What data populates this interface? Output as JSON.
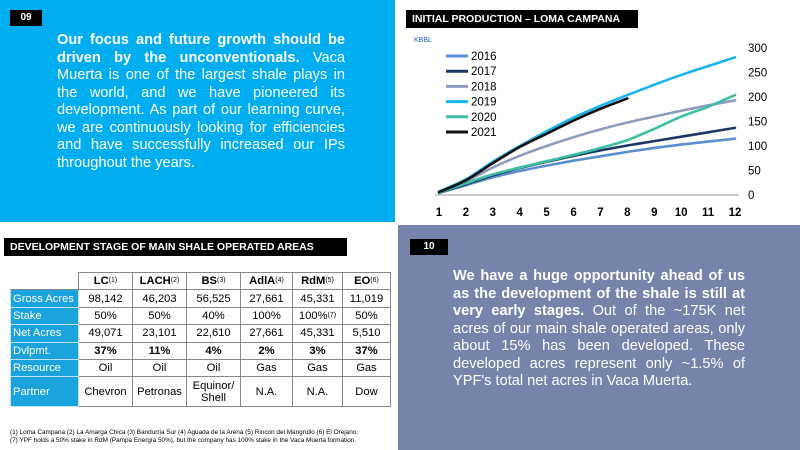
{
  "slide09": {
    "number": "09",
    "lead": "Our focus and future growth should be driven by the unconventionals.",
    "body": " Vaca Muerta is one of the largest shale plays in the world, and we have pioneered its development. As part of our learning curve, we are continuously looking for efficiencies and have successfully increased our IPs throughout the years."
  },
  "chart": {
    "header": "INITIAL PRODUCTION – LOMA CAMPANA",
    "unit": "KBBL"
  },
  "chart_data": {
    "type": "line",
    "title": "INITIAL PRODUCTION – LOMA CAMPANA",
    "ylabel": "KBBL",
    "xlabel": "",
    "x": [
      1,
      2,
      3,
      4,
      5,
      6,
      7,
      8,
      9,
      10,
      11,
      12
    ],
    "xlim": [
      1,
      12
    ],
    "ylim": [
      0,
      300
    ],
    "y_ticks": [
      0,
      50,
      100,
      150,
      200,
      250,
      300
    ],
    "y_axis_side": "right",
    "grid": false,
    "legend": "top-left",
    "series": [
      {
        "name": "2016",
        "color": "#5b8fd0",
        "values": [
          4,
          20,
          36,
          49,
          60,
          70,
          79,
          88,
          96,
          103,
          109,
          115
        ]
      },
      {
        "name": "2017",
        "color": "#1c3766",
        "values": [
          5,
          22,
          40,
          55,
          68,
          80,
          91,
          101,
          110,
          119,
          128,
          137
        ]
      },
      {
        "name": "2018",
        "color": "#8f9bbe",
        "values": [
          6,
          28,
          56,
          80,
          100,
          118,
          134,
          148,
          160,
          172,
          183,
          193
        ]
      },
      {
        "name": "2019",
        "color": "#19b5f0",
        "values": [
          7,
          32,
          68,
          100,
          130,
          158,
          182,
          204,
          225,
          245,
          263,
          281
        ]
      },
      {
        "name": "2020",
        "color": "#3dbfa5",
        "values": [
          5,
          24,
          42,
          56,
          69,
          82,
          96,
          112,
          135,
          160,
          180,
          204
        ]
      },
      {
        "name": "2021",
        "color": "#111111",
        "values": [
          6,
          30,
          65,
          98,
          125,
          152,
          176,
          197,
          null,
          null,
          null,
          null
        ]
      }
    ]
  },
  "dev": {
    "header": "DEVELOPMENT STAGE OF MAIN SHALE OPERATED AREAS",
    "columns": [
      {
        "label": "LC",
        "sup": "(1)"
      },
      {
        "label": "LACH",
        "sup": "(2)"
      },
      {
        "label": "BS",
        "sup": "(3)"
      },
      {
        "label": "AdlA",
        "sup": "(4)"
      },
      {
        "label": "RdM",
        "sup": "(5)"
      },
      {
        "label": "EO",
        "sup": "(6)"
      }
    ],
    "rows": [
      {
        "label": "Gross Acres",
        "cells": [
          "98,142",
          "46,203",
          "56,525",
          "27,661",
          "45,331",
          "11,019"
        ]
      },
      {
        "label": "Stake",
        "cells": [
          "50%",
          "50%",
          "40%",
          "100%",
          "100%",
          "50%"
        ],
        "rdm_sup": "(7)"
      },
      {
        "label": "Net Acres",
        "cells": [
          "49,071",
          "23,101",
          "22,610",
          "27,661",
          "45,331",
          "5,510"
        ]
      },
      {
        "label": "Dvlpmt.",
        "cells": [
          "37%",
          "11%",
          "4%",
          "2%",
          "3%",
          "37%"
        ]
      },
      {
        "label": "Resource",
        "cells": [
          "Oil",
          "Oil",
          "Oil",
          "Gas",
          "Gas",
          "Gas"
        ]
      },
      {
        "label": "Partner",
        "cells": [
          "Chevron",
          "Petronas",
          "Equinor/ Shell",
          "N.A.",
          "N.A.",
          "Dow"
        ]
      }
    ],
    "footnote1": "(1) Loma Campana (2) La Amarga Chica (3) Bandurria Sur (4) Aguada de la Arena (5) Rincon del Mangrullo (6) El Orejano.",
    "footnote2": "(7) YPF holds a 50% stake in RdM (Pampa Energía 50%), but the company has 100% stake in the Vaca Muerta formation."
  },
  "slide10": {
    "number": "10",
    "lead": "We have a huge opportunity ahead of us as the development of the shale is still at very early stages.",
    "body": " Out of the ~175K net acres of our main shale operated areas, only about 15% has been developed. These developed acres represent only ~1.5% of YPF's total net acres in Vaca Muerta."
  }
}
